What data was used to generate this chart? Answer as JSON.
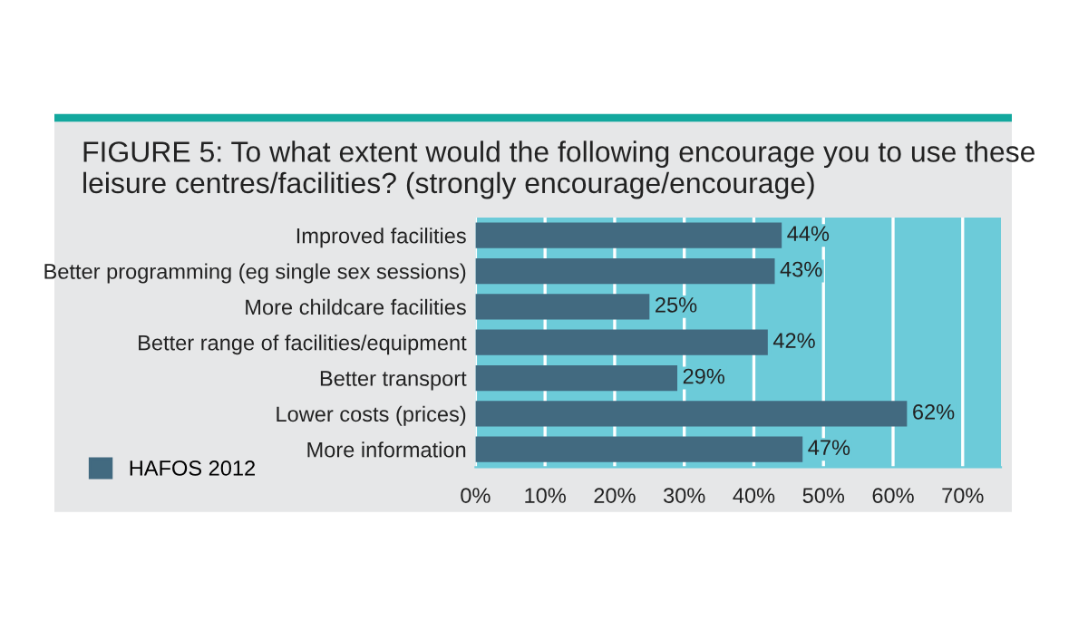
{
  "chart_data": {
    "type": "bar",
    "orientation": "horizontal",
    "title": "FIGURE 5: To what extent would the following encourage you to use these leisure centres/facilities? (strongly encourage/encourage)",
    "categories": [
      "Improved facilities",
      "Better programming (eg single sex sessions)",
      "More childcare facilities",
      "Better range of facilities/equipment",
      "Better transport",
      "Lower costs (prices)",
      "More information"
    ],
    "series": [
      {
        "name": "HAFOS 2012",
        "color": "#426a80",
        "values": [
          44,
          43,
          25,
          42,
          29,
          62,
          47
        ],
        "value_labels": [
          "44%",
          "43%",
          "25%",
          "42%",
          "29%",
          "62%",
          "47%"
        ]
      }
    ],
    "xlim": [
      0,
      75.5
    ],
    "xticks": [
      {
        "value": 0,
        "label": "0%"
      },
      {
        "value": 10,
        "label": "10%"
      },
      {
        "value": 20,
        "label": "20%"
      },
      {
        "value": 30,
        "label": "30%"
      },
      {
        "value": 40,
        "label": "40%"
      },
      {
        "value": 50,
        "label": "50%"
      },
      {
        "value": 60,
        "label": "60%"
      },
      {
        "value": 70,
        "label": "70%"
      }
    ],
    "grid": "x",
    "legend": "bottom left"
  }
}
